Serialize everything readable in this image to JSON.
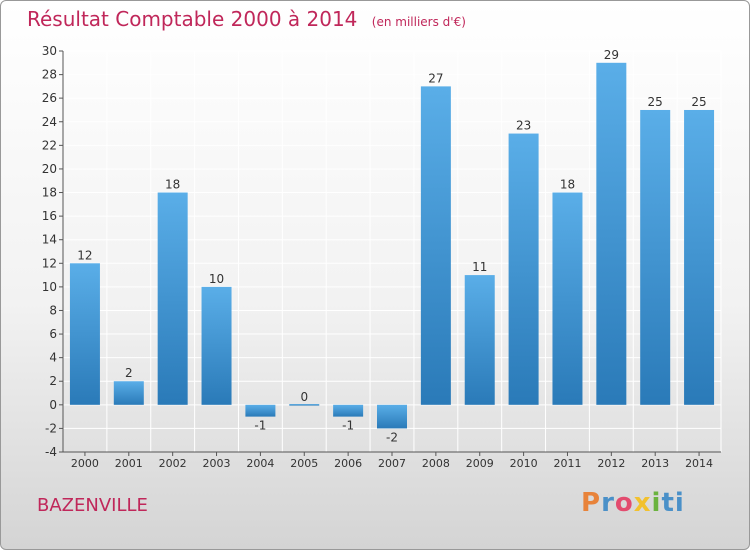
{
  "header": {
    "title": "Résultat Comptable 2000 à 2014",
    "unit": "(en milliers d'€)"
  },
  "footer": {
    "commune": "BAZENVILLE",
    "logo_letters": [
      "P",
      "r",
      "o",
      "x",
      "i",
      "ti"
    ]
  },
  "colors": {
    "title": "#c0275a",
    "bar_top": "#5aaee8",
    "bar_bottom": "#2a7ab8",
    "grid": "#ffffff",
    "axis": "#555555"
  },
  "chart_data": {
    "type": "bar",
    "categories": [
      "2000",
      "2001",
      "2002",
      "2003",
      "2004",
      "2005",
      "2006",
      "2007",
      "2008",
      "2009",
      "2010",
      "2011",
      "2012",
      "2013",
      "2014"
    ],
    "values": [
      12,
      2,
      18,
      10,
      -1,
      0,
      -1,
      -2,
      27,
      11,
      23,
      18,
      29,
      25,
      25
    ],
    "labels": [
      "12",
      "2",
      "18",
      "10",
      "-1",
      "0",
      "-1",
      "-2",
      "27",
      "11",
      "23",
      "18",
      "29",
      "25",
      "25"
    ],
    "title": "Résultat Comptable 2000 à 2014",
    "xlabel": "",
    "ylabel": "",
    "ylim": [
      -4,
      30
    ],
    "yticks": [
      -4,
      -2,
      0,
      2,
      4,
      6,
      8,
      10,
      12,
      14,
      16,
      18,
      20,
      22,
      24,
      26,
      28,
      30
    ],
    "grid": true,
    "legend": "none"
  }
}
